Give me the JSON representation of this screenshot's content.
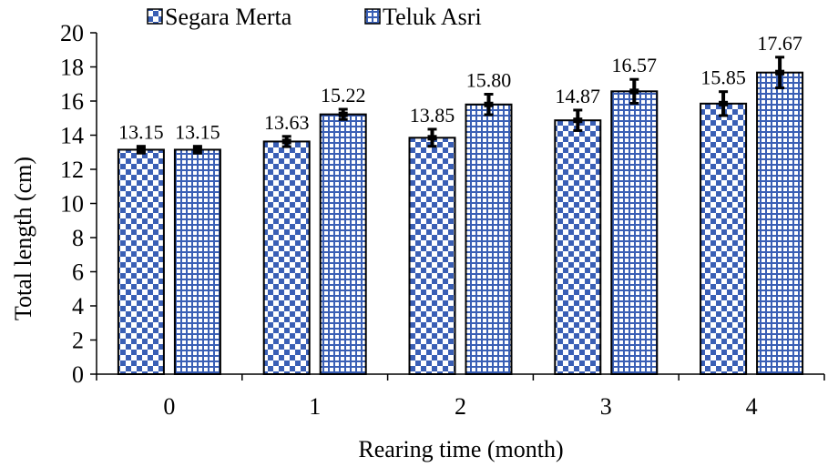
{
  "chart_data": {
    "type": "bar",
    "title": "",
    "xlabel": "Rearing time (month)",
    "ylabel": "Total length (cm)",
    "categories": [
      "0",
      "1",
      "2",
      "3",
      "4"
    ],
    "ylim": [
      0,
      20
    ],
    "yticks": [
      0,
      2,
      4,
      6,
      8,
      10,
      12,
      14,
      16,
      18,
      20
    ],
    "legend": {
      "placement": "top",
      "frame": false
    },
    "series": [
      {
        "name": "Segara Merta",
        "pattern": "checkerboard",
        "color": "#3a5fb5",
        "values": [
          13.15,
          13.63,
          13.85,
          14.87,
          15.85
        ],
        "labels": [
          "13.15",
          "13.63",
          "13.85",
          "14.87",
          "15.85"
        ],
        "errors": [
          0.2,
          0.3,
          0.5,
          0.6,
          0.7
        ]
      },
      {
        "name": "Teluk Asri",
        "pattern": "grid",
        "color": "#3a5fb5",
        "values": [
          13.15,
          15.22,
          15.8,
          16.57,
          17.67
        ],
        "labels": [
          "13.15",
          "15.22",
          "15.80",
          "16.57",
          "17.67"
        ],
        "errors": [
          0.2,
          0.3,
          0.6,
          0.7,
          0.9
        ]
      }
    ]
  }
}
